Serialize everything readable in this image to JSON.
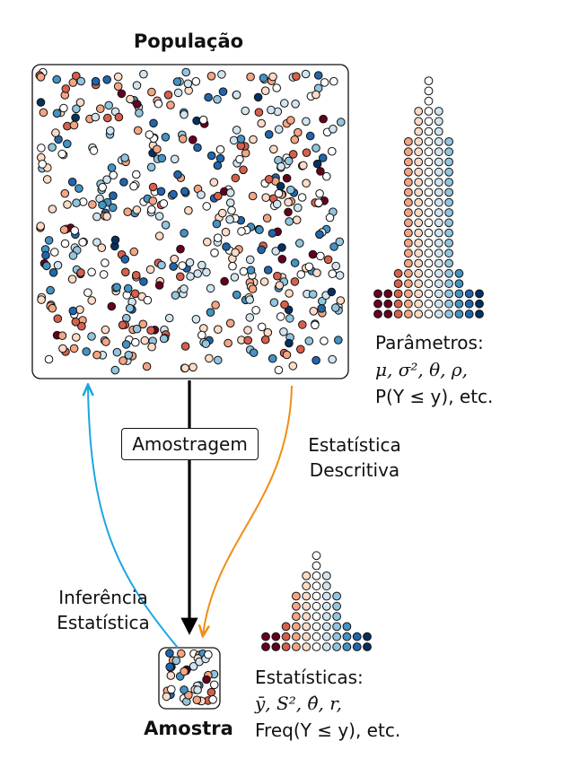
{
  "labels": {
    "population": "População",
    "sample": "Amostra",
    "sampling": "Amostragem",
    "descriptive": [
      "Estatística",
      "Descritiva"
    ],
    "inference": [
      "Inferência",
      "Estatística"
    ],
    "parameters_heading": "Parâmetros:",
    "parameters_symbols": "μ, σ², θ, ρ,",
    "parameters_prob": "P(Y ≤ y), etc.",
    "statistics_heading": "Estatísticas:",
    "statistics_symbols": "ȳ, S², θ̂, r,",
    "statistics_freq": "Freq(Y ≤ y), etc."
  },
  "colors": {
    "palette": [
      "#67001f",
      "#d6604d",
      "#f4a582",
      "#fddbc7",
      "#ffffff",
      "#d1e5f0",
      "#92c5de",
      "#4393c3",
      "#2166ac",
      "#053061"
    ],
    "inference_arrow": "#1ca6e0",
    "descriptive_arrow": "#f28c13",
    "sampling_arrow": "#000000"
  },
  "population_histogram": [
    3,
    3,
    5,
    18,
    21,
    24,
    21,
    18,
    5,
    3,
    3
  ],
  "sample_histogram": [
    2,
    2,
    3,
    6,
    8,
    10,
    8,
    6,
    3,
    2,
    2
  ]
}
